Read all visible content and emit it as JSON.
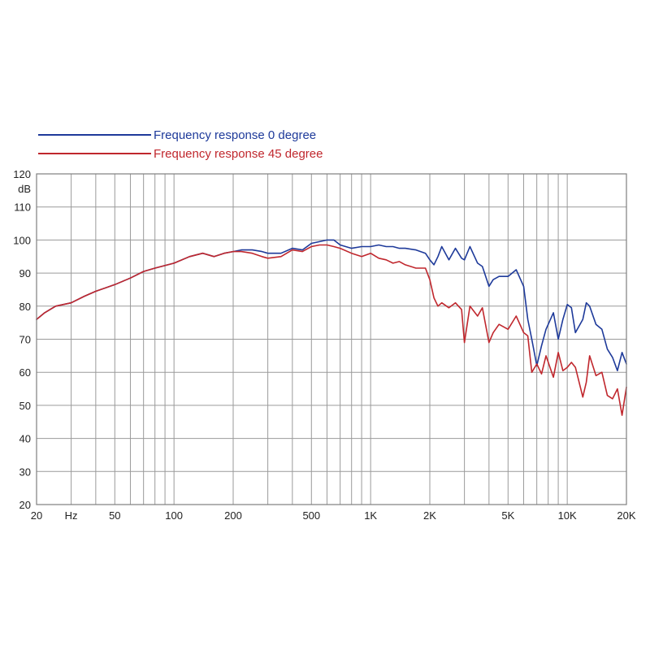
{
  "chart_data": {
    "type": "line",
    "title": "",
    "xlabel": "",
    "ylabel": "dB",
    "x_scale": "log",
    "xlim": [
      20,
      20000
    ],
    "ylim": [
      20,
      120
    ],
    "grid": true,
    "legend_position": "top-left",
    "x_ticks": [
      {
        "value": 20,
        "label": "20"
      },
      {
        "value": 30,
        "label": "Hz"
      },
      {
        "value": 50,
        "label": "50"
      },
      {
        "value": 100,
        "label": "100"
      },
      {
        "value": 200,
        "label": "200"
      },
      {
        "value": 500,
        "label": "500"
      },
      {
        "value": 1000,
        "label": "1K"
      },
      {
        "value": 2000,
        "label": "2K"
      },
      {
        "value": 5000,
        "label": "5K"
      },
      {
        "value": 10000,
        "label": "10K"
      },
      {
        "value": 20000,
        "label": "20K"
      }
    ],
    "y_ticks": [
      20,
      30,
      40,
      50,
      60,
      70,
      80,
      90,
      100,
      110,
      120
    ],
    "series": [
      {
        "name": "Frequency response 0 degree",
        "color": "#1e3a9a",
        "x": [
          20,
          22,
          25,
          30,
          35,
          40,
          50,
          60,
          70,
          80,
          100,
          120,
          140,
          160,
          180,
          200,
          220,
          250,
          280,
          300,
          350,
          400,
          450,
          500,
          550,
          600,
          650,
          700,
          800,
          900,
          1000,
          1100,
          1200,
          1300,
          1400,
          1500,
          1700,
          1900,
          2000,
          2100,
          2200,
          2300,
          2500,
          2700,
          2900,
          3000,
          3200,
          3500,
          3700,
          4000,
          4200,
          4500,
          5000,
          5500,
          6000,
          6300,
          6600,
          7000,
          7400,
          7800,
          8500,
          9000,
          9500,
          10000,
          10500,
          11000,
          12000,
          12500,
          13000,
          14000,
          15000,
          16000,
          17000,
          18000,
          19000,
          20000
        ],
        "values": [
          76,
          78,
          80,
          81,
          83,
          84.5,
          86.5,
          88.5,
          90.5,
          91.5,
          93,
          95,
          96,
          95,
          96,
          96.5,
          97,
          97,
          96.5,
          96,
          96,
          97.5,
          97,
          99,
          99.5,
          100,
          100,
          98.5,
          97.5,
          98,
          98,
          98.5,
          98,
          98,
          97.5,
          97.5,
          97,
          96,
          94,
          92.5,
          95,
          98,
          94,
          97.5,
          94.5,
          94,
          98,
          93,
          92,
          86,
          88,
          89,
          89,
          91,
          86,
          76,
          70,
          62,
          68,
          73,
          78,
          70,
          76,
          80.5,
          79.5,
          72,
          76,
          81,
          80,
          74.5,
          73,
          67,
          64.5,
          60.5,
          66,
          62.5
        ]
      },
      {
        "name": "Frequency response 45 degree",
        "color": "#c0272d",
        "x": [
          20,
          22,
          25,
          30,
          35,
          40,
          50,
          60,
          70,
          80,
          100,
          120,
          140,
          160,
          180,
          200,
          220,
          250,
          280,
          300,
          350,
          400,
          450,
          500,
          550,
          600,
          650,
          700,
          800,
          900,
          1000,
          1100,
          1200,
          1300,
          1400,
          1500,
          1700,
          1900,
          2000,
          2100,
          2200,
          2300,
          2500,
          2700,
          2900,
          3000,
          3200,
          3500,
          3700,
          4000,
          4200,
          4500,
          5000,
          5500,
          6000,
          6300,
          6600,
          7000,
          7400,
          7800,
          8500,
          9000,
          9500,
          10000,
          10500,
          11000,
          12000,
          12500,
          13000,
          14000,
          15000,
          16000,
          17000,
          18000,
          19000,
          20000
        ],
        "values": [
          76,
          78,
          80,
          81,
          83,
          84.5,
          86.5,
          88.5,
          90.5,
          91.5,
          93,
          95,
          96,
          95,
          96,
          96.5,
          96.5,
          96,
          95,
          94.5,
          95,
          97,
          96.5,
          98,
          98.5,
          98.5,
          98,
          97.5,
          96,
          95,
          96,
          94.5,
          94,
          93,
          93.5,
          92.5,
          91.5,
          91.5,
          88,
          82.5,
          80,
          81,
          79.5,
          81,
          79,
          69,
          80,
          77,
          79.5,
          69,
          72,
          74.5,
          73,
          77,
          72,
          71,
          60,
          62.5,
          59.5,
          65,
          58.5,
          66,
          60.5,
          61.5,
          63,
          61.5,
          52.5,
          57,
          65,
          59,
          60,
          53,
          52,
          55,
          47,
          55.5
        ]
      }
    ]
  }
}
